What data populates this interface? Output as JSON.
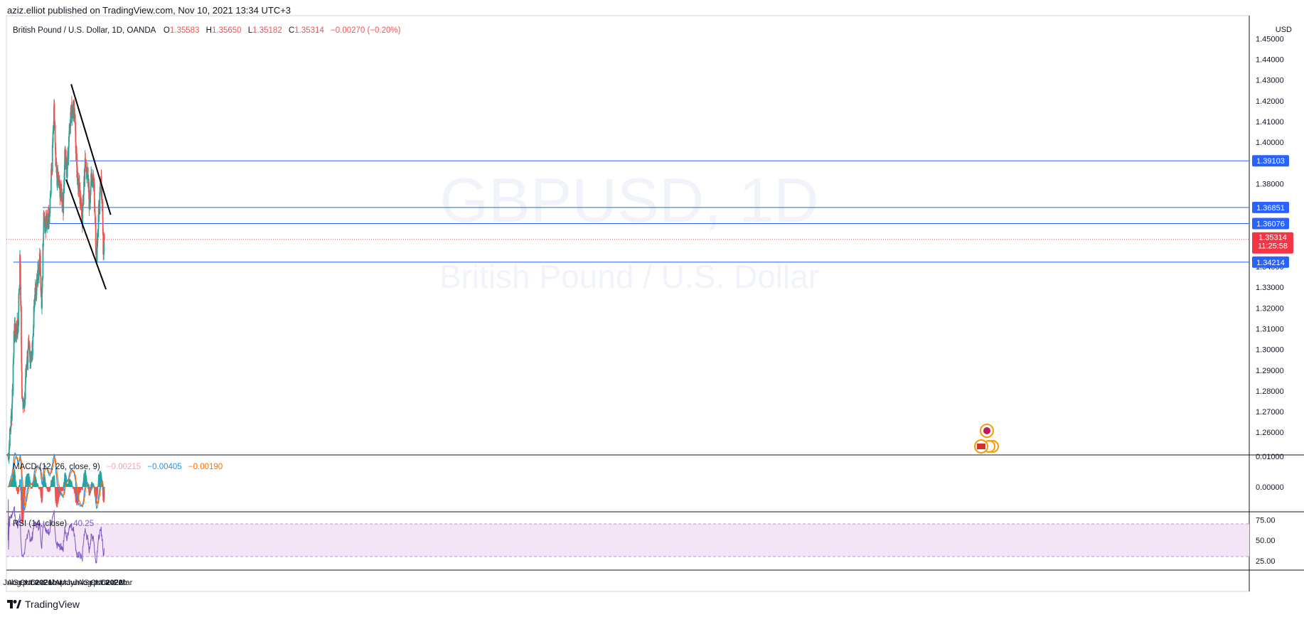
{
  "publish_line": "aziz.elliot published on TradingView.com, Nov 10, 2021 13:34 UTC+3",
  "footer_brand": "TradingView",
  "watermark": {
    "ticker": "GBPUSD, 1D",
    "name": "British Pound / U.S. Dollar"
  },
  "legend": {
    "symbol": "British Pound / U.S. Dollar, 1D, OANDA",
    "o_label": "O",
    "o_value": "1.35583",
    "h_label": "H",
    "h_value": "1.35650",
    "l_label": "L",
    "l_value": "1.35182",
    "c_label": "C",
    "c_value": "1.35314",
    "change": "−0.00270 (−0.20%)"
  },
  "currency": "USD",
  "price_labels": {
    "last_price": "1.35314",
    "countdown": "11:25:58",
    "levels": [
      "1.39103",
      "1.36851",
      "1.36076",
      "1.34214"
    ]
  },
  "macd_legend": {
    "title": "MACD (12, 26, close, 9)",
    "hist": "−0.00215",
    "macd": "−0.00405",
    "signal": "−0.00190"
  },
  "rsi_legend": {
    "title": "RSI (14, close)",
    "value": "40.25"
  },
  "colors": {
    "up": "#26a69a",
    "down": "#ef5350",
    "level_line": "#2962ff",
    "trend_line": "#000000",
    "macd_line": "#2196f3",
    "signal_line": "#ff6d00",
    "rsi_line": "#7e57c2",
    "rsi_band": "#f3e5f5",
    "last_price_bg": "#f23645",
    "level_bg": "#2962ff"
  },
  "chart_data": [
    {
      "type": "candlestick",
      "symbol": "GBP/USD",
      "interval": "1D",
      "exchange": "OANDA",
      "y_axis": {
        "ticks": [
          "1.26000",
          "1.27000",
          "1.28000",
          "1.29000",
          "1.30000",
          "1.31000",
          "1.32000",
          "1.33000",
          "1.34000",
          "1.35000",
          "1.36000",
          "1.37000",
          "1.38000",
          "1.39000",
          "1.40000",
          "1.41000",
          "1.42000",
          "1.43000",
          "1.44000",
          "1.45000"
        ],
        "range": [
          1.255,
          1.462
        ]
      },
      "x_axis": {
        "ticks": [
          "Jul",
          "Aug",
          "Sep",
          "Oct",
          "Nov",
          "Dec",
          "2021",
          "Feb",
          "Mar",
          "Apr",
          "May",
          "Jun",
          "Jul",
          "Aug",
          "Sep",
          "Oct",
          "Nov",
          "Dec",
          "2022",
          "Feb",
          "Mar"
        ]
      },
      "anchors": [
        [
          "2020-07-01",
          1.248
        ],
        [
          "2020-07-20",
          1.27
        ],
        [
          "2020-08-01",
          1.308
        ],
        [
          "2020-08-20",
          1.31
        ],
        [
          "2020-09-01",
          1.345
        ],
        [
          "2020-09-10",
          1.28
        ],
        [
          "2020-09-23",
          1.272
        ],
        [
          "2020-10-01",
          1.29
        ],
        [
          "2020-10-15",
          1.3
        ],
        [
          "2020-11-01",
          1.295
        ],
        [
          "2020-11-15",
          1.325
        ],
        [
          "2020-12-01",
          1.335
        ],
        [
          "2020-12-13",
          1.345
        ],
        [
          "2020-12-21",
          1.32
        ],
        [
          "2021-01-01",
          1.365
        ],
        [
          "2021-01-15",
          1.36
        ],
        [
          "2021-02-01",
          1.368
        ],
        [
          "2021-02-15",
          1.395
        ],
        [
          "2021-02-24",
          1.415
        ],
        [
          "2021-03-05",
          1.385
        ],
        [
          "2021-03-20",
          1.38
        ],
        [
          "2021-04-01",
          1.375
        ],
        [
          "2021-04-12",
          1.37
        ],
        [
          "2021-04-20",
          1.395
        ],
        [
          "2021-05-01",
          1.385
        ],
        [
          "2021-05-15",
          1.41
        ],
        [
          "2021-06-01",
          1.418
        ],
        [
          "2021-06-10",
          1.415
        ],
        [
          "2021-06-20",
          1.385
        ],
        [
          "2021-07-01",
          1.38
        ],
        [
          "2021-07-20",
          1.362
        ],
        [
          "2021-08-01",
          1.39
        ],
        [
          "2021-08-15",
          1.385
        ],
        [
          "2021-08-25",
          1.37
        ],
        [
          "2021-09-01",
          1.38
        ],
        [
          "2021-09-15",
          1.385
        ],
        [
          "2021-09-30",
          1.345
        ],
        [
          "2021-10-15",
          1.37
        ],
        [
          "2021-10-25",
          1.38
        ],
        [
          "2021-11-01",
          1.37
        ],
        [
          "2021-11-05",
          1.345
        ],
        [
          "2021-11-10",
          1.3531
        ]
      ],
      "last": {
        "open": 1.35583,
        "high": 1.3565,
        "low": 1.35182,
        "close": 1.35314
      },
      "horizontal_levels": [
        {
          "value": 1.39103,
          "from": "2021-05-15"
        },
        {
          "value": 1.36851,
          "from": "2020-12-26"
        },
        {
          "value": 1.36076,
          "from": "2021-01-28"
        },
        {
          "value": 1.34214,
          "from": "2020-07-28"
        }
      ],
      "trend_lines": [
        {
          "from": [
            "2021-05-23",
            1.428
          ],
          "to": [
            "2021-12-13",
            1.365
          ]
        },
        {
          "from": [
            "2021-04-27",
            1.382
          ],
          "to": [
            "2021-11-19",
            1.329
          ]
        }
      ]
    },
    {
      "type": "line",
      "title": "MACD (12, 26, close, 9)",
      "series": [
        {
          "name": "MACD",
          "value": -0.00405
        },
        {
          "name": "Signal",
          "value": -0.0019
        },
        {
          "name": "Histogram",
          "value": -0.00215
        }
      ],
      "y_axis": {
        "ticks": [
          "0.01000",
          "0.00000"
        ]
      }
    },
    {
      "type": "line",
      "title": "RSI (14, close)",
      "series": [
        {
          "name": "RSI",
          "value": 40.25
        }
      ],
      "y_axis": {
        "ticks": [
          "75.00",
          "50.00",
          "25.00"
        ],
        "bands": [
          30,
          70
        ]
      }
    }
  ]
}
